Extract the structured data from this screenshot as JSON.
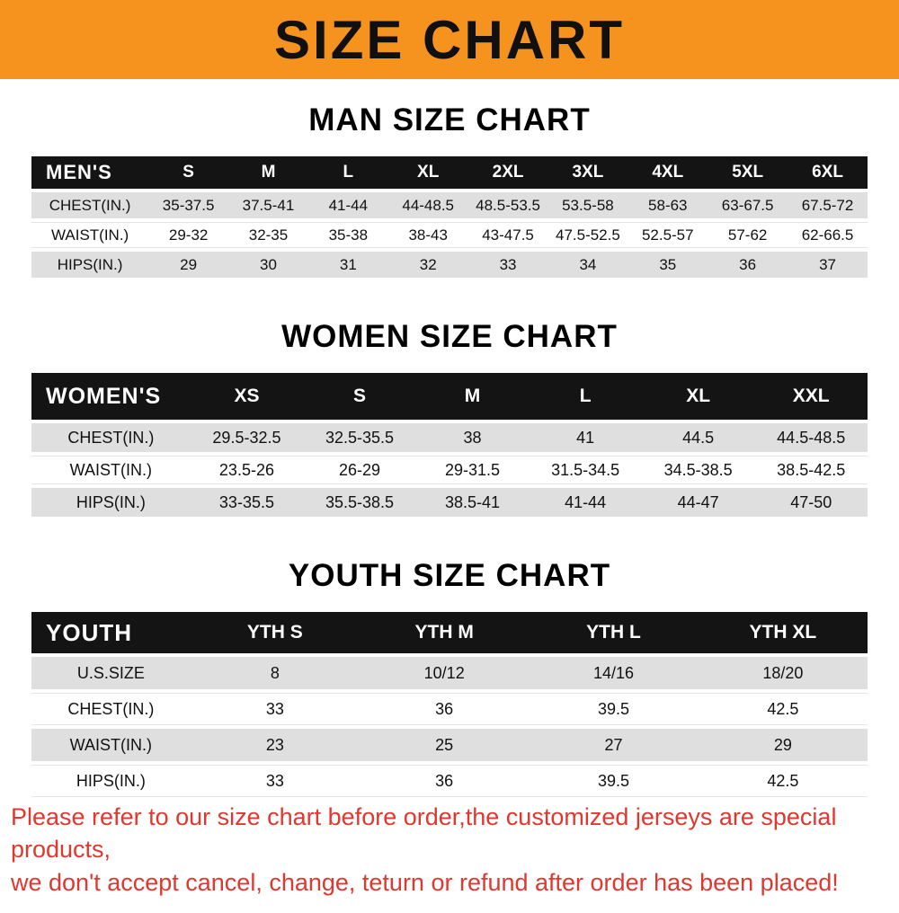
{
  "banner": {
    "title": "SIZE CHART"
  },
  "sections": {
    "men": {
      "heading": "MAN SIZE CHART",
      "table": {
        "header": [
          "MEN'S",
          "S",
          "M",
          "L",
          "XL",
          "2XL",
          "3XL",
          "4XL",
          "5XL",
          "6XL"
        ],
        "rows": [
          [
            "CHEST(IN.)",
            "35-37.5",
            "37.5-41",
            "41-44",
            "44-48.5",
            "48.5-53.5",
            "53.5-58",
            "58-63",
            "63-67.5",
            "67.5-72"
          ],
          [
            "WAIST(IN.)",
            "29-32",
            "32-35",
            "35-38",
            "38-43",
            "43-47.5",
            "47.5-52.5",
            "52.5-57",
            "57-62",
            "62-66.5"
          ],
          [
            "HIPS(IN.)",
            "29",
            "30",
            "31",
            "32",
            "33",
            "34",
            "35",
            "36",
            "37"
          ]
        ]
      }
    },
    "women": {
      "heading": "WOMEN SIZE CHART",
      "table": {
        "header": [
          "WOMEN'S",
          "XS",
          "S",
          "M",
          "L",
          "XL",
          "XXL"
        ],
        "rows": [
          [
            "CHEST(IN.)",
            "29.5-32.5",
            "32.5-35.5",
            "38",
            "41",
            "44.5",
            "44.5-48.5"
          ],
          [
            "WAIST(IN.)",
            "23.5-26",
            "26-29",
            "29-31.5",
            "31.5-34.5",
            "34.5-38.5",
            "38.5-42.5"
          ],
          [
            "HIPS(IN.)",
            "33-35.5",
            "35.5-38.5",
            "38.5-41",
            "41-44",
            "44-47",
            "47-50"
          ]
        ]
      }
    },
    "youth": {
      "heading": "YOUTH SIZE CHART",
      "table": {
        "header": [
          "YOUTH",
          "YTH S",
          "YTH M",
          "YTH L",
          "YTH XL"
        ],
        "rows": [
          [
            "U.S.SIZE",
            "8",
            "10/12",
            "14/16",
            "18/20"
          ],
          [
            "CHEST(IN.)",
            "33",
            "36",
            "39.5",
            "42.5"
          ],
          [
            "WAIST(IN.)",
            "23",
            "25",
            "27",
            "29"
          ],
          [
            "HIPS(IN.)",
            "33",
            "36",
            "39.5",
            "42.5"
          ]
        ]
      }
    }
  },
  "footer": {
    "line1": "Please refer to our size chart before order,the customized jerseys are special products,",
    "line2": "we don't accept cancel, change, teturn or refund after order has been placed!"
  },
  "colors": {
    "banner_orange": "#F6921E",
    "header_black": "#141414",
    "row_gray": "#DFDFDF",
    "footer_red": "#E0372E"
  }
}
